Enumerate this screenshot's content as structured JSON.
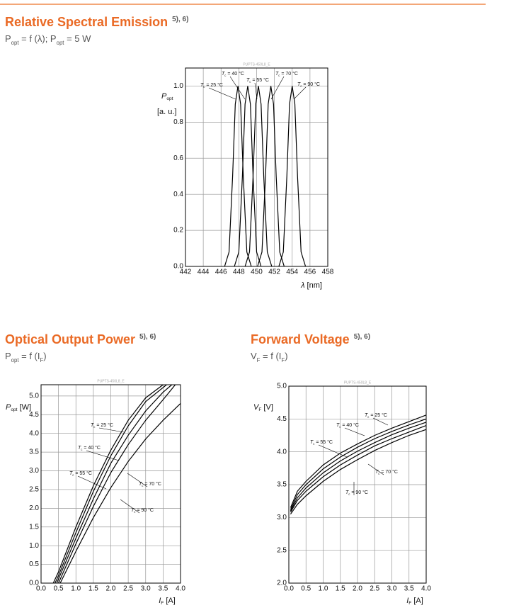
{
  "chart_data": [
    {
      "type": "line",
      "title": "Relative Spectral Emission",
      "title_note": "5), 6)",
      "subtitle": [
        {
          "text": "P",
          "sub": "opt"
        },
        {
          "text": " = f (λ); P",
          "sub": "opt"
        },
        {
          "text": " = 5 W"
        }
      ],
      "code": "PUPTS-450L8_E",
      "y_label": [
        {
          "text": "P",
          "sub": "opt"
        },
        {
          "text": "[a. u.]"
        }
      ],
      "x_label": [
        {
          "text": "λ"
        },
        {
          "text": " [nm]"
        }
      ],
      "xlim": [
        442,
        458
      ],
      "xticks": [
        442,
        444,
        446,
        448,
        450,
        452,
        454,
        456,
        458
      ],
      "ylim": [
        0,
        1.1
      ],
      "yticks": [
        {
          "value": 0,
          "label": "0.0"
        },
        0.2,
        0.4,
        0.6,
        0.8,
        {
          "value": 1,
          "label": "1.0"
        }
      ],
      "grid": true,
      "color": "#000000",
      "series": [
        {
          "label": [
            {
              "text": "T",
              "sub": "c"
            },
            {
              "text": " = 25 °C"
            }
          ],
          "x": [
            446.4,
            446.9,
            447.3,
            447.6,
            447.9,
            448.2,
            448.5,
            448.9,
            449.4
          ],
          "values": [
            0,
            0.08,
            0.5,
            0.9,
            1,
            0.9,
            0.5,
            0.08,
            0
          ]
        },
        {
          "label": [
            {
              "text": "T",
              "sub": "c"
            },
            {
              "text": " = 40 °C"
            }
          ],
          "x": [
            447.5,
            448,
            448.4,
            448.7,
            449,
            449.3,
            449.6,
            450,
            450.5
          ],
          "values": [
            0,
            0.08,
            0.5,
            0.9,
            1,
            0.9,
            0.5,
            0.08,
            0
          ]
        },
        {
          "label": [
            {
              "text": "T",
              "sub": "c"
            },
            {
              "text": " = 55 °C"
            }
          ],
          "x": [
            448.7,
            449.2,
            449.6,
            449.9,
            450.2,
            450.5,
            450.8,
            451.2,
            451.7
          ],
          "values": [
            0,
            0.08,
            0.5,
            0.9,
            1,
            0.9,
            0.5,
            0.08,
            0
          ]
        },
        {
          "label": [
            {
              "text": "T",
              "sub": "c"
            },
            {
              "text": " = 70 °C"
            }
          ],
          "x": [
            450.1,
            450.6,
            451,
            451.3,
            451.6,
            451.9,
            452.2,
            452.6,
            453.1
          ],
          "values": [
            0,
            0.08,
            0.5,
            0.9,
            1,
            0.9,
            0.5,
            0.08,
            0
          ]
        },
        {
          "label": [
            {
              "text": "T",
              "sub": "c"
            },
            {
              "text": " = 90 °C"
            }
          ],
          "x": [
            452.5,
            453,
            453.4,
            453.7,
            454,
            454.3,
            454.6,
            455,
            455.5
          ],
          "values": [
            0,
            0.08,
            0.5,
            0.9,
            1,
            0.9,
            0.5,
            0.08,
            0
          ]
        }
      ]
    },
    {
      "type": "line",
      "title": "Optical Output Power",
      "title_note": "5), 6)",
      "subtitle": [
        {
          "text": "P",
          "sub": "opt"
        },
        {
          "text": " = f (I",
          "sub": "F"
        },
        {
          "text": ")"
        }
      ],
      "code": "PUPTS-450L8_E",
      "y_label": [
        {
          "text": "P",
          "sub": "opt"
        },
        {
          "text": " [W]"
        }
      ],
      "x_label": [
        {
          "text": "I",
          "sub": "F"
        },
        {
          "text": " [A]"
        }
      ],
      "xlim": [
        0,
        4
      ],
      "xticks": [
        {
          "value": 0,
          "label": "0.0"
        },
        0.5,
        {
          "value": 1,
          "label": "1.0"
        },
        1.5,
        {
          "value": 2,
          "label": "2.0"
        },
        2.5,
        {
          "value": 3,
          "label": "3.0"
        },
        3.5,
        {
          "value": 4,
          "label": "4.0"
        }
      ],
      "ylim": [
        0,
        5.3
      ],
      "yticks": [
        {
          "value": 0,
          "label": "0.0"
        },
        0.5,
        {
          "value": 1,
          "label": "1.0"
        },
        1.5,
        {
          "value": 2,
          "label": "2.0"
        },
        2.5,
        {
          "value": 3,
          "label": "3.0"
        },
        3.5,
        {
          "value": 4,
          "label": "4.0"
        },
        4.5,
        {
          "value": 5,
          "label": "5.0"
        }
      ],
      "grid": true,
      "color": "#000000",
      "series": [
        {
          "label": [
            {
              "text": "T",
              "sub": "c"
            },
            {
              "text": " = 25 °C"
            }
          ],
          "x": [
            0.35,
            0.5,
            1,
            1.5,
            2,
            2.5,
            3,
            3.5
          ],
          "values": [
            0,
            0.3,
            1.5,
            2.6,
            3.55,
            4.35,
            4.95,
            5.3
          ]
        },
        {
          "label": [
            {
              "text": "T",
              "sub": "c"
            },
            {
              "text": " = 40 °C"
            }
          ],
          "x": [
            0.4,
            0.5,
            1,
            1.5,
            2,
            2.5,
            3,
            3.6
          ],
          "values": [
            0,
            0.2,
            1.35,
            2.45,
            3.4,
            4.2,
            4.85,
            5.3
          ]
        },
        {
          "label": [
            {
              "text": "T",
              "sub": "c"
            },
            {
              "text": " = 55 °C"
            }
          ],
          "x": [
            0.45,
            1,
            1.5,
            2,
            2.5,
            3,
            3.5,
            3.75
          ],
          "values": [
            0,
            1.2,
            2.25,
            3.2,
            3.95,
            4.6,
            5.1,
            5.3
          ]
        },
        {
          "label": [
            {
              "text": "T",
              "sub": "c"
            },
            {
              "text": " = 70 °C"
            }
          ],
          "x": [
            0.5,
            1,
            1.5,
            2,
            2.5,
            3,
            3.5,
            3.85
          ],
          "values": [
            0,
            1.05,
            2.05,
            2.95,
            3.7,
            4.35,
            4.9,
            5.3
          ]
        },
        {
          "label": [
            {
              "text": "T",
              "sub": "c"
            },
            {
              "text": " = 90 °C"
            }
          ],
          "x": [
            0.55,
            1,
            1.5,
            2,
            2.5,
            3,
            3.5,
            4
          ],
          "values": [
            0,
            0.85,
            1.75,
            2.55,
            3.25,
            3.85,
            4.35,
            4.8
          ]
        }
      ]
    },
    {
      "type": "line",
      "title": "Forward Voltage",
      "title_note": "5), 6)",
      "subtitle": [
        {
          "text": "V",
          "sub": "F"
        },
        {
          "text": " = f (I",
          "sub": "F"
        },
        {
          "text": ")"
        }
      ],
      "code": "PUPTS-450L8_E",
      "y_label": [
        {
          "text": "V",
          "sub": "F"
        },
        {
          "text": " [V]"
        }
      ],
      "x_label": [
        {
          "text": "I",
          "sub": "F"
        },
        {
          "text": " [A]"
        }
      ],
      "xlim": [
        0,
        4
      ],
      "xticks": [
        {
          "value": 0,
          "label": "0.0"
        },
        0.5,
        {
          "value": 1,
          "label": "1.0"
        },
        1.5,
        {
          "value": 2,
          "label": "2.0"
        },
        2.5,
        {
          "value": 3,
          "label": "3.0"
        },
        3.5,
        {
          "value": 4,
          "label": "4.0"
        }
      ],
      "ylim": [
        2,
        5
      ],
      "yticks": [
        {
          "value": 2,
          "label": "2.0"
        },
        2.5,
        {
          "value": 3,
          "label": "3.0"
        },
        3.5,
        {
          "value": 4,
          "label": "4.0"
        },
        4.5,
        {
          "value": 5,
          "label": "5.0"
        }
      ],
      "grid": true,
      "color": "#000000",
      "series": [
        {
          "label": [
            {
              "text": "T",
              "sub": "c"
            },
            {
              "text": " = 25 °C"
            }
          ],
          "x": [
            0.05,
            0.25,
            0.5,
            1,
            1.5,
            2,
            2.5,
            3,
            3.5,
            4
          ],
          "values": [
            3.15,
            3.4,
            3.55,
            3.8,
            3.98,
            4.12,
            4.25,
            4.36,
            4.46,
            4.56
          ]
        },
        {
          "label": [
            {
              "text": "T",
              "sub": "c"
            },
            {
              "text": " = 40 °C"
            }
          ],
          "x": [
            0.05,
            0.25,
            0.5,
            1,
            1.5,
            2,
            2.5,
            3,
            3.5,
            4
          ],
          "values": [
            3.12,
            3.35,
            3.5,
            3.74,
            3.92,
            4.07,
            4.2,
            4.31,
            4.41,
            4.5
          ]
        },
        {
          "label": [
            {
              "text": "T",
              "sub": "c"
            },
            {
              "text": " = 55 °C"
            }
          ],
          "x": [
            0.05,
            0.25,
            0.5,
            1,
            1.5,
            2,
            2.5,
            3,
            3.5,
            4
          ],
          "values": [
            3.1,
            3.3,
            3.45,
            3.68,
            3.86,
            4.01,
            4.14,
            4.26,
            4.36,
            4.45
          ]
        },
        {
          "label": [
            {
              "text": "T",
              "sub": "c"
            },
            {
              "text": " = 70 °C"
            }
          ],
          "x": [
            0.05,
            0.25,
            0.5,
            1,
            1.5,
            2,
            2.5,
            3,
            3.5,
            4
          ],
          "values": [
            3.08,
            3.26,
            3.4,
            3.62,
            3.8,
            3.95,
            4.09,
            4.2,
            4.3,
            4.4
          ]
        },
        {
          "label": [
            {
              "text": "T",
              "sub": "c"
            },
            {
              "text": " = 90 °C"
            }
          ],
          "x": [
            0.05,
            0.25,
            0.5,
            1,
            1.5,
            2,
            2.5,
            3,
            3.5,
            4
          ],
          "values": [
            3.05,
            3.2,
            3.33,
            3.55,
            3.73,
            3.88,
            4.02,
            4.14,
            4.25,
            4.34
          ]
        }
      ]
    }
  ]
}
